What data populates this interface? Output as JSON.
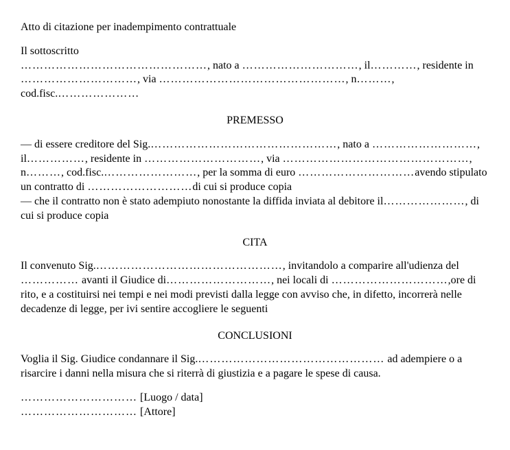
{
  "title": "Atto di citazione per inadempimento contrattuale",
  "intro": {
    "subscriber": "Il sottoscritto",
    "born": ", nato a ",
    "il": ", il",
    "resident": ", residente in ",
    "via": ", via ",
    "n": ", n",
    "codfisc": ", cod.fisc."
  },
  "premesso": {
    "heading": "PREMESSO",
    "creditor": "— di essere creditore del Sig.",
    "born": ", nato a ",
    "il": ", il",
    "resident": ", residente in ",
    "via": ", via ",
    "n": ", n",
    "codfisc": ", cod.fisc.",
    "sum": ", per la somma di euro ",
    "contract": "avendo stipulato un contratto di ",
    "copy": "di cui si produce copia",
    "notfulfilled": "— che il contratto non è stato adempiuto nonostante la diffida inviata al debitore il",
    "copy2": ", di cui si produce copia"
  },
  "cita": {
    "heading": "CITA",
    "defendant": "Il convenuto Sig.",
    "invite": ", invitandolo a comparire all'udienza del ",
    "before": " avanti il Giudice di",
    "premises": ", nei locali di ",
    "rite": ",ore di rito, e a costituirsi nei tempi e nei modi previsti dalla legge con avviso che, in difetto, incorrerà nelle decadenze di legge, per ivi sentire accogliere le seguenti"
  },
  "conclusioni": {
    "heading": "CONCLUSIONI",
    "judge": "Voglia il Sig. Giudice condannare il Sig.",
    "fulfill": " ad adempiere o a risarcire i danni nella misura che si riterrà di giustizia e a pagare le spese di causa."
  },
  "signature": {
    "place": " [Luogo / data]",
    "actor": " [Attore]"
  },
  "dots": {
    "d50": "…………………………………………",
    "d30": "…………………………",
    "d25": "………………………",
    "d20": "……………………",
    "d18": "…………………",
    "d15": "……………",
    "d12": "…………",
    "d10": "………",
    "d8": "……"
  },
  "colors": {
    "text": "#000000",
    "background": "#ffffff"
  }
}
